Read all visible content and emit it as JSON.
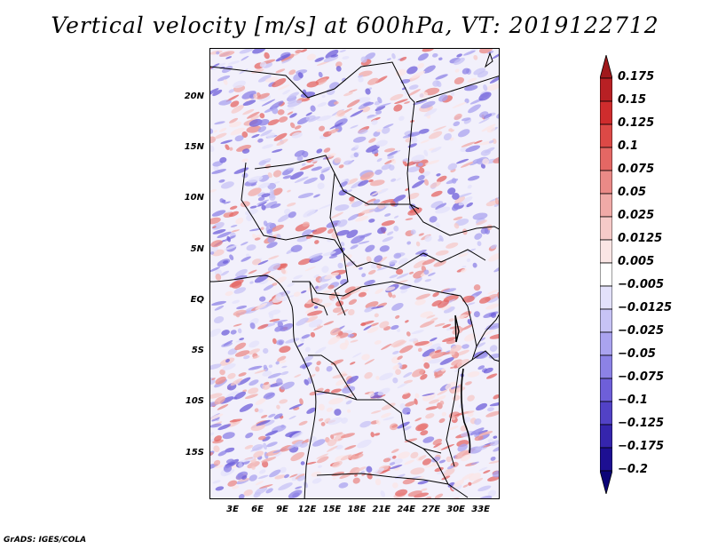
{
  "title": "Vertical velocity [m/s] at 600hPa, VT: 2019122712",
  "credit": "GrADS: IGES/COLA",
  "map": {
    "lat_ticks": [
      "20N",
      "15N",
      "10N",
      "5N",
      "EQ",
      "5S",
      "10S",
      "15S"
    ],
    "lon_ticks": [
      "3E",
      "6E",
      "9E",
      "12E",
      "15E",
      "18E",
      "21E",
      "24E",
      "27E",
      "30E",
      "33E"
    ],
    "lat_values": [
      20,
      15,
      10,
      5,
      0,
      -5,
      -10,
      -15
    ],
    "lon_values": [
      3,
      6,
      9,
      12,
      15,
      18,
      21,
      24,
      27,
      30,
      33
    ],
    "lat_range": [
      -19.5,
      24.9
    ],
    "lon_range": [
      0.2,
      35.3
    ]
  },
  "colorbar": {
    "labels": [
      "0.175",
      "0.15",
      "0.125",
      "0.1",
      "0.075",
      "0.05",
      "0.025",
      "0.0125",
      "0.005",
      "−0.005",
      "−0.0125",
      "−0.025",
      "−0.05",
      "−0.075",
      "−0.1",
      "−0.125",
      "−0.175",
      "−0.2"
    ],
    "colors": [
      "#a0191c",
      "#b82024",
      "#cf2c2d",
      "#dc4946",
      "#e46764",
      "#ea8a87",
      "#f0aaa7",
      "#f6cac8",
      "#fbe6e5",
      "#ffffff",
      "#e3e1fb",
      "#c7c3f5",
      "#aaa3ef",
      "#8c82e6",
      "#6e5fd9",
      "#5242c6",
      "#3525ad",
      "#1d0f92",
      "#0c0577"
    ]
  },
  "colors": {
    "positive": "#d63a3a",
    "negative": "#6a5ee0",
    "border": "#000000"
  }
}
